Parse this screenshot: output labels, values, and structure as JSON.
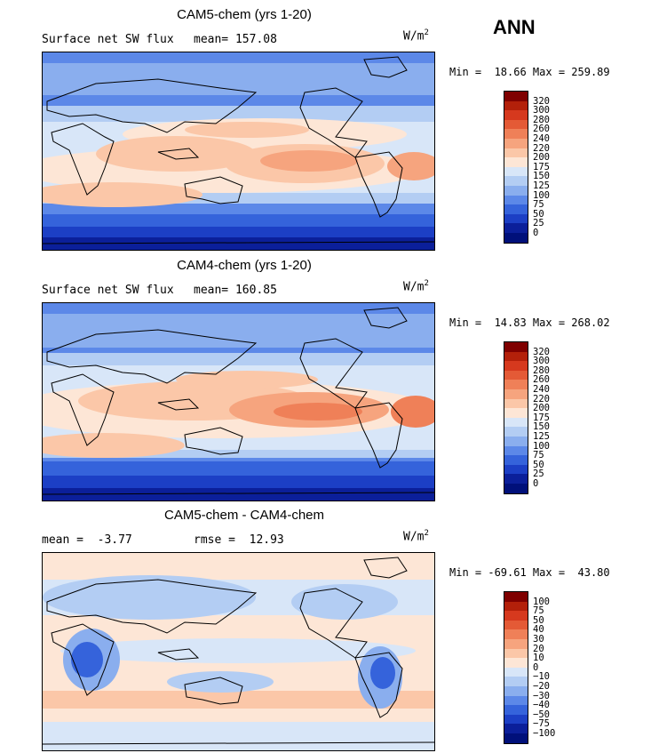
{
  "season": "ANN",
  "units_main": "W/m",
  "units_sup": "2",
  "panels": [
    {
      "title": "CAM5-chem (yrs 1-20)",
      "left_text": "Surface net SW flux",
      "right_text": "mean= 157.08",
      "min_max": "Min =  18.66 Max = 259.89",
      "labels": [
        "320",
        "300",
        "280",
        "260",
        "240",
        "220",
        "200",
        "175",
        "150",
        "125",
        "100",
        "75",
        "50",
        "25",
        "0"
      ]
    },
    {
      "title": "CAM4-chem (yrs 1-20)",
      "left_text": "Surface net SW flux",
      "right_text": "mean= 160.85",
      "min_max": "Min =  14.83 Max = 268.02",
      "labels": [
        "320",
        "300",
        "280",
        "260",
        "240",
        "220",
        "200",
        "175",
        "150",
        "125",
        "100",
        "75",
        "50",
        "25",
        "0"
      ]
    },
    {
      "title": "CAM5-chem - CAM4-chem",
      "left_text": "mean =  -3.77",
      "right_text": "rmse =  12.93",
      "min_max": "Min = -69.61 Max =  43.80",
      "labels": [
        "100",
        "75",
        "50",
        "40",
        "30",
        "20",
        "10",
        "0",
        "−10",
        "−20",
        "−30",
        "−40",
        "−50",
        "−75",
        "−100"
      ]
    }
  ],
  "palette": [
    "#7f0000",
    "#b3200a",
    "#d6391e",
    "#e45a36",
    "#ef8058",
    "#f6a47e",
    "#fbc7a8",
    "#fde6d6",
    "#d8e6f8",
    "#b3cdf3",
    "#8aaeee",
    "#5c88e8",
    "#3563db",
    "#1c3fc5",
    "#0b1f9a",
    "#00107a"
  ]
}
